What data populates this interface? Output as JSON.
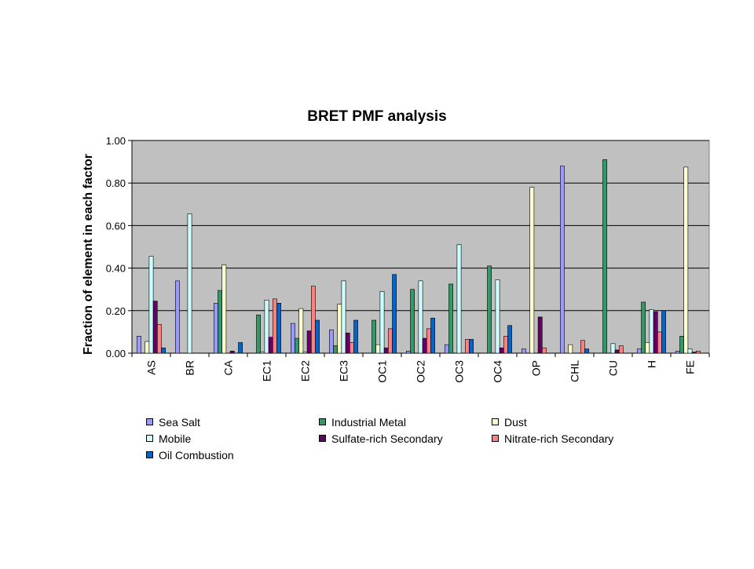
{
  "chart_data": {
    "type": "bar",
    "title": "BRET PMF analysis",
    "xlabel": "",
    "ylabel": "Fraction of element in each factor",
    "ylim": [
      0,
      1
    ],
    "yticks": [
      "0.00",
      "0.20",
      "0.40",
      "0.60",
      "0.80",
      "1.00"
    ],
    "grid": true,
    "legend_position": "bottom",
    "plot_background": "#c0c0c0",
    "categories": [
      "AS",
      "BR",
      "CA",
      "EC1",
      "EC2",
      "EC3",
      "OC1",
      "OC2",
      "OC3",
      "OC4",
      "OP",
      "CHL",
      "CU",
      "H",
      "FE"
    ],
    "series": [
      {
        "name": "Sea Salt",
        "color": "#9999ff",
        "values": [
          0.08,
          0.34,
          0.235,
          0.0,
          0.14,
          0.11,
          0.0,
          0.01,
          0.04,
          0.0,
          0.02,
          0.88,
          0.0,
          0.02,
          0.01
        ]
      },
      {
        "name": "Industrial Metal",
        "color": "#339966",
        "values": [
          0.0,
          0.0,
          0.295,
          0.18,
          0.07,
          0.035,
          0.155,
          0.3,
          0.325,
          0.41,
          0.0,
          0.0,
          0.91,
          0.24,
          0.08
        ]
      },
      {
        "name": "Dust",
        "color": "#ffffcc",
        "values": [
          0.055,
          0.0,
          0.415,
          0.005,
          0.21,
          0.23,
          0.04,
          0.0,
          0.0,
          0.0,
          0.78,
          0.04,
          0.0,
          0.05,
          0.875
        ]
      },
      {
        "name": "Mobile",
        "color": "#ccffff",
        "values": [
          0.455,
          0.655,
          0.0,
          0.25,
          0.005,
          0.34,
          0.29,
          0.34,
          0.51,
          0.345,
          0.0,
          0.0,
          0.045,
          0.205,
          0.02
        ]
      },
      {
        "name": "Sulfate-rich Secondary",
        "color": "#660066",
        "values": [
          0.245,
          0.0,
          0.01,
          0.075,
          0.105,
          0.095,
          0.025,
          0.07,
          0.0,
          0.025,
          0.17,
          0.0,
          0.015,
          0.195,
          0.005
        ]
      },
      {
        "name": "Nitrate-rich Secondary",
        "color": "#ff8080",
        "values": [
          0.135,
          0.0,
          0.0,
          0.255,
          0.315,
          0.05,
          0.115,
          0.115,
          0.065,
          0.08,
          0.025,
          0.06,
          0.035,
          0.1,
          0.01
        ]
      },
      {
        "name": "Oil Combustion",
        "color": "#0066cc",
        "values": [
          0.025,
          0.0,
          0.05,
          0.235,
          0.155,
          0.155,
          0.37,
          0.165,
          0.065,
          0.13,
          0.0,
          0.02,
          0.0,
          0.2,
          0.0
        ]
      }
    ]
  }
}
